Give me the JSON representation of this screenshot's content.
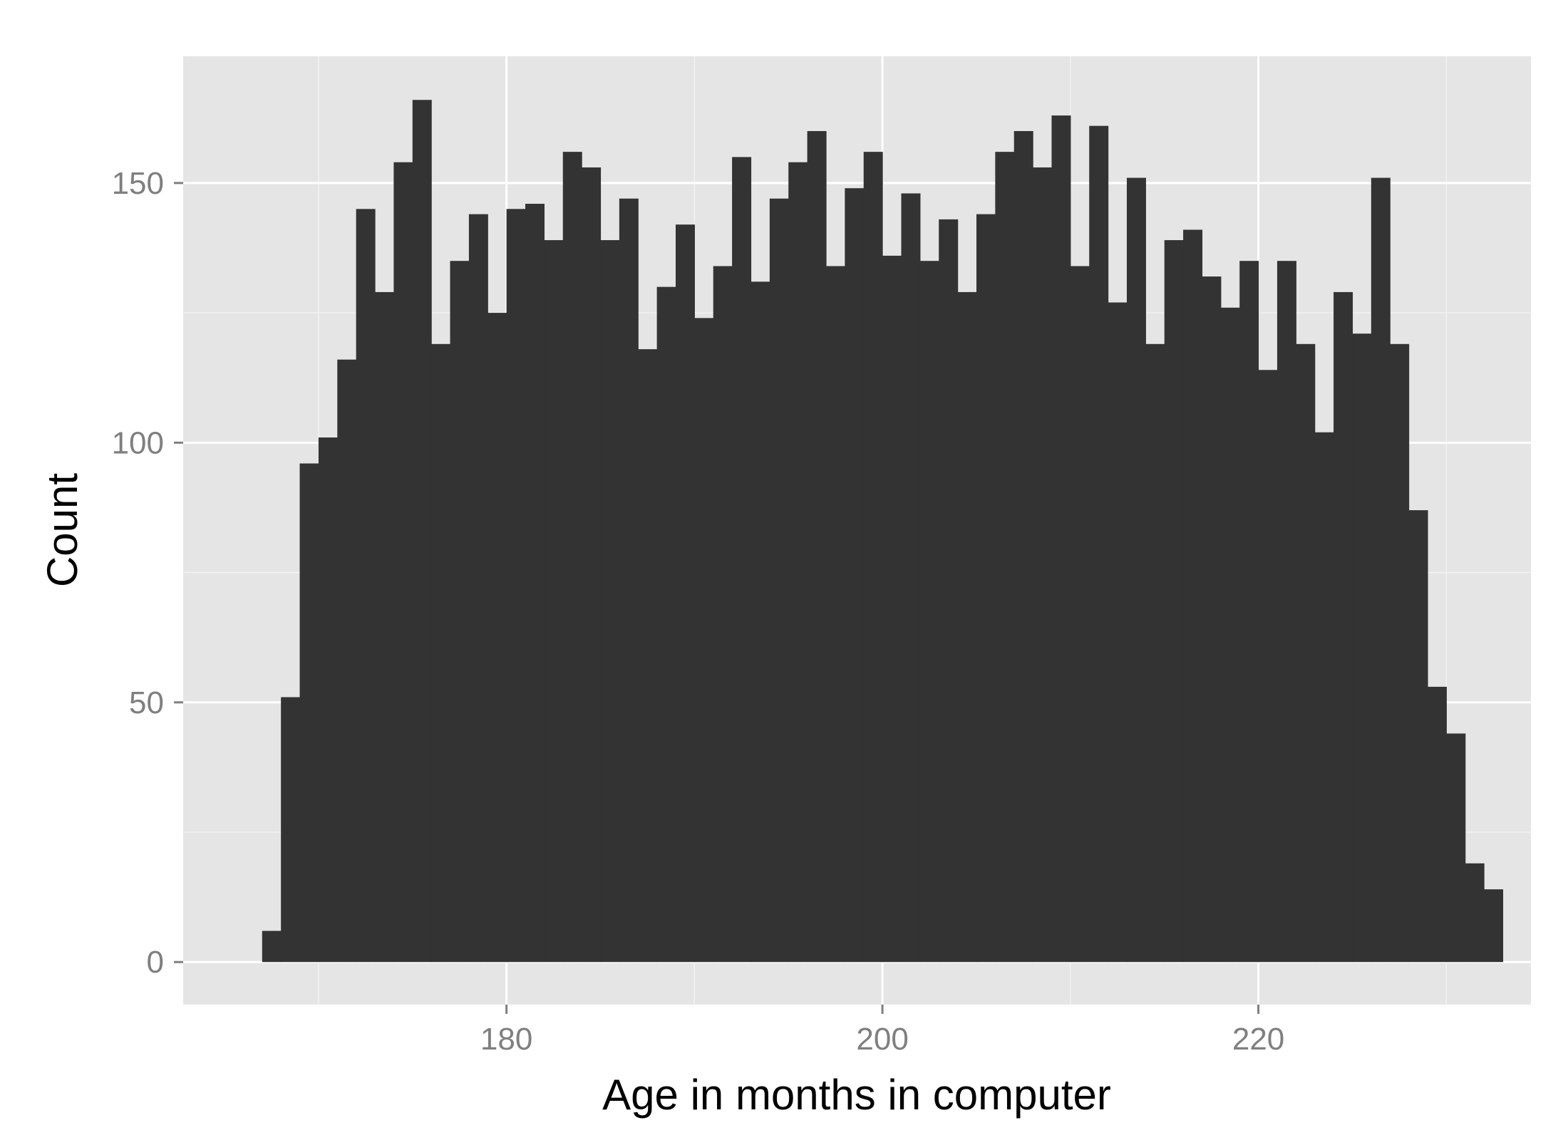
{
  "chart_data": {
    "type": "bar",
    "title": "",
    "xlabel": "Age in months in computer",
    "ylabel": "Count",
    "xlim": [
      162.8,
      234.5
    ],
    "ylim": [
      -8.2,
      174.4
    ],
    "x_ticks": [
      180,
      200,
      220
    ],
    "x_minor_ticks": [
      170,
      190,
      210,
      230
    ],
    "y_ticks": [
      0,
      50,
      100,
      150
    ],
    "y_minor_ticks": [
      25,
      75,
      125
    ],
    "grid": true,
    "bin_width": 1,
    "bin_starts": [
      167,
      168,
      169,
      170,
      171,
      172,
      173,
      174,
      175,
      176,
      177,
      178,
      179,
      180,
      181,
      182,
      183,
      184,
      185,
      186,
      187,
      188,
      189,
      190,
      191,
      192,
      193,
      194,
      195,
      196,
      197,
      198,
      199,
      200,
      201,
      202,
      203,
      204,
      205,
      206,
      207,
      208,
      209,
      210,
      211,
      212,
      213,
      214,
      215,
      216,
      217,
      218,
      219,
      220,
      221,
      222,
      223,
      224,
      225,
      226,
      227,
      228,
      229,
      230,
      231,
      232
    ],
    "values": [
      6,
      51,
      96,
      101,
      116,
      145,
      129,
      154,
      166,
      119,
      135,
      144,
      125,
      145,
      146,
      139,
      156,
      153,
      139,
      147,
      118,
      130,
      142,
      124,
      134,
      155,
      131,
      147,
      154,
      160,
      134,
      149,
      156,
      136,
      148,
      135,
      143,
      129,
      144,
      156,
      160,
      153,
      163,
      134,
      161,
      127,
      151,
      119,
      139,
      141,
      132,
      126,
      135,
      114,
      135,
      119,
      102,
      129,
      121,
      151,
      119,
      87,
      53,
      44,
      19,
      14
    ],
    "colors": {
      "panel": "#e5e5e5",
      "bar": "#333333",
      "grid_major": "#ffffff",
      "grid_minor": "#f2f2f2",
      "tick_text": "#7f7f7f",
      "tick_mark": "#7f7f7f"
    }
  }
}
